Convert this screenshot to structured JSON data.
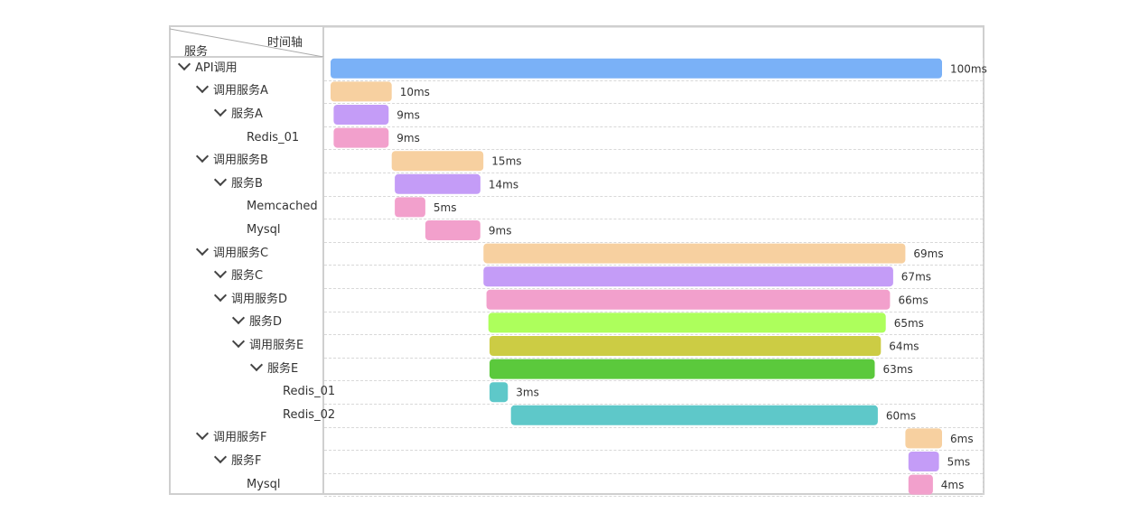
{
  "header": {
    "service_label": "服务",
    "timeline_label": "时间轴"
  },
  "colors": {
    "blue": "#7ab1f7",
    "peach": "#f7d0a0",
    "purple": "#c49cf7",
    "pink": "#f2a0cc",
    "lime": "#adff5c",
    "olive": "#cccc44",
    "green": "#5bc93c",
    "teal": "#5ec8c9"
  },
  "chart_data": {
    "type": "gantt",
    "unit": "ms",
    "rows": [
      {
        "label": "API调用",
        "depth": 0,
        "chevron": true,
        "start": 0,
        "duration": 100,
        "value_label": "100ms",
        "color": "#7ab1f7"
      },
      {
        "label": "调用服务A",
        "depth": 1,
        "chevron": true,
        "start": 0,
        "duration": 10,
        "value_label": "10ms",
        "color": "#f7d0a0"
      },
      {
        "label": "服务A",
        "depth": 2,
        "chevron": true,
        "start": 0.5,
        "duration": 9,
        "value_label": "9ms",
        "color": "#c49cf7"
      },
      {
        "label": "Redis_01",
        "depth": 3,
        "chevron": false,
        "start": 0.5,
        "duration": 9,
        "value_label": "9ms",
        "color": "#f2a0cc"
      },
      {
        "label": "调用服务B",
        "depth": 1,
        "chevron": true,
        "start": 10,
        "duration": 15,
        "value_label": "15ms",
        "color": "#f7d0a0"
      },
      {
        "label": "服务B",
        "depth": 2,
        "chevron": true,
        "start": 10.5,
        "duration": 14,
        "value_label": "14ms",
        "color": "#c49cf7"
      },
      {
        "label": "Memcached",
        "depth": 3,
        "chevron": false,
        "start": 10.5,
        "duration": 5,
        "value_label": "5ms",
        "color": "#f2a0cc"
      },
      {
        "label": "Mysql",
        "depth": 3,
        "chevron": false,
        "start": 15.5,
        "duration": 9,
        "value_label": "9ms",
        "color": "#f2a0cc"
      },
      {
        "label": "调用服务C",
        "depth": 1,
        "chevron": true,
        "start": 25,
        "duration": 69,
        "value_label": "69ms",
        "color": "#f7d0a0"
      },
      {
        "label": "服务C",
        "depth": 2,
        "chevron": true,
        "start": 25,
        "duration": 67,
        "value_label": "67ms",
        "color": "#c49cf7"
      },
      {
        "label": "调用服务D",
        "depth": 2,
        "chevron": true,
        "start": 25.5,
        "duration": 66,
        "value_label": "66ms",
        "color": "#f2a0cc"
      },
      {
        "label": "服务D",
        "depth": 3,
        "chevron": true,
        "start": 25.8,
        "duration": 65,
        "value_label": "65ms",
        "color": "#adff5c"
      },
      {
        "label": "调用服务E",
        "depth": 3,
        "chevron": true,
        "start": 26,
        "duration": 64,
        "value_label": "64ms",
        "color": "#cccc44"
      },
      {
        "label": "服务E",
        "depth": 4,
        "chevron": true,
        "start": 26,
        "duration": 63,
        "value_label": "63ms",
        "color": "#5bc93c"
      },
      {
        "label": "Redis_01",
        "depth": 5,
        "chevron": false,
        "start": 26,
        "duration": 3,
        "value_label": "3ms",
        "color": "#5ec8c9"
      },
      {
        "label": "Redis_02",
        "depth": 5,
        "chevron": false,
        "start": 29.5,
        "duration": 60,
        "value_label": "60ms",
        "color": "#5ec8c9"
      },
      {
        "label": "调用服务F",
        "depth": 1,
        "chevron": true,
        "start": 94,
        "duration": 6,
        "value_label": "6ms",
        "color": "#f7d0a0"
      },
      {
        "label": "服务F",
        "depth": 2,
        "chevron": true,
        "start": 94.5,
        "duration": 5,
        "value_label": "5ms",
        "color": "#c49cf7"
      },
      {
        "label": "Mysql",
        "depth": 3,
        "chevron": false,
        "start": 94.5,
        "duration": 4,
        "value_label": "4ms",
        "color": "#f2a0cc"
      }
    ]
  }
}
